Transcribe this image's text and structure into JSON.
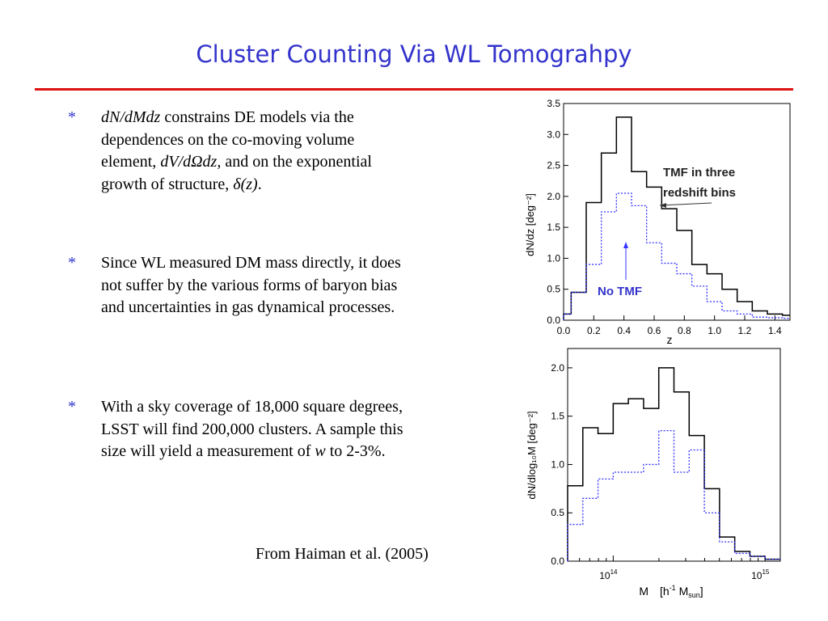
{
  "slide": {
    "title": "Cluster Counting Via WL Tomograhpy",
    "bullet_marker": "*",
    "bullets": [
      {
        "parts": [
          {
            "t": "dN/dMdz",
            "i": true
          },
          {
            "t": " constrains DE models via the dependences on the co-moving volume element, ",
            "i": false
          },
          {
            "t": "dV/dΩdz,",
            "i": true
          },
          {
            "t": " and on the exponential growth of structure, ",
            "i": false
          },
          {
            "t": "δ(z)",
            "i": true
          },
          {
            "t": ".",
            "i": false
          }
        ]
      },
      {
        "parts": [
          {
            "t": "Since WL measured DM mass directly, it does not suffer by the various forms of baryon bias and uncertainties in gas dynamical processes.",
            "i": false
          }
        ]
      },
      {
        "parts": [
          {
            "t": "With a sky coverage of 18,000 square degrees, LSST will find 200,000 clusters.  A sample this size will yield a measurement of ",
            "i": false
          },
          {
            "t": "w",
            "i": true
          },
          {
            "t": " to 2-3%.",
            "i": false
          }
        ]
      }
    ],
    "source": "From Haiman et al. (2005)",
    "colors": {
      "title": "#3333cc",
      "rule": "#dd1111",
      "series_tmf": "#000000",
      "series_notmf": "#3333ff"
    }
  },
  "chart_data": [
    {
      "type": "line",
      "style": "step histogram",
      "xlabel": "z",
      "ylabel": "dN/dz  [deg⁻²]",
      "xlim": [
        0.0,
        1.5
      ],
      "ylim": [
        0.0,
        3.5
      ],
      "x_ticks": [
        "0.0",
        "0.2",
        "0.4",
        "0.6",
        "0.8",
        "1.0",
        "1.2",
        "1.4"
      ],
      "y_ticks": [
        "0.0",
        "0.5",
        "1.0",
        "1.5",
        "2.0",
        "2.5",
        "3.0",
        "3.5"
      ],
      "x_edges": [
        0.0,
        0.05,
        0.15,
        0.25,
        0.35,
        0.45,
        0.55,
        0.65,
        0.75,
        0.85,
        0.95,
        1.05,
        1.15,
        1.25,
        1.35,
        1.45,
        1.55
      ],
      "series": [
        {
          "values": [
            0.1,
            0.45,
            1.9,
            2.7,
            3.28,
            2.4,
            2.15,
            1.8,
            1.45,
            0.9,
            0.75,
            0.5,
            0.3,
            0.15,
            0.1,
            0.08
          ]
        },
        {
          "values": [
            0.1,
            0.45,
            0.9,
            1.75,
            2.05,
            1.85,
            1.25,
            0.92,
            0.75,
            0.55,
            0.3,
            0.15,
            0.1,
            0.05,
            0.04,
            0.03
          ]
        }
      ],
      "annotations": [
        "TMF in three redshift bins",
        "No TMF"
      ]
    },
    {
      "type": "line",
      "style": "step histogram",
      "xlabel_main": "M",
      "xlabel_units": [
        "[h",
        "-1",
        " M",
        "sun",
        "]"
      ],
      "ylabel": "dN/dlog₁₀M  [deg⁻²]",
      "xscale": "log",
      "xlim": [
        13.7,
        15.1
      ],
      "ylim": [
        0.0,
        2.2
      ],
      "x_tick_base": "10",
      "x_ticks": [
        {
          "exp": "14",
          "at": 14.0
        },
        {
          "exp": "15",
          "at": 15.0
        }
      ],
      "y_ticks": [
        "0.0",
        "0.5",
        "1.0",
        "1.5",
        "2.0"
      ],
      "x_edges": [
        13.7,
        13.8,
        13.9,
        14.0,
        14.1,
        14.2,
        14.3,
        14.4,
        14.5,
        14.6,
        14.7,
        14.8,
        14.9,
        15.0,
        15.1
      ],
      "series": [
        {
          "values": [
            0.78,
            1.38,
            1.32,
            1.63,
            1.68,
            1.58,
            2.0,
            1.75,
            1.3,
            0.75,
            0.25,
            0.1,
            0.05,
            0.02
          ]
        },
        {
          "values": [
            0.38,
            0.65,
            0.85,
            0.92,
            0.92,
            1.0,
            1.35,
            0.92,
            1.15,
            0.5,
            0.2,
            0.08,
            0.05,
            0.02
          ]
        }
      ]
    }
  ]
}
